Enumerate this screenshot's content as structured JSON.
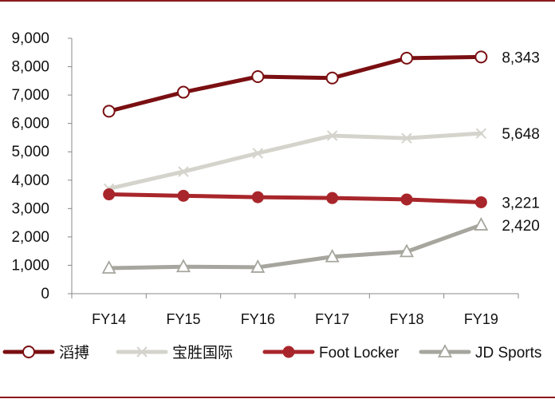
{
  "chart_data": {
    "type": "line",
    "categories": [
      "FY14",
      "FY15",
      "FY16",
      "FY17",
      "FY18",
      "FY19"
    ],
    "ylim": [
      0,
      9000
    ],
    "yticks": [
      "0",
      "1,000",
      "2,000",
      "3,000",
      "4,000",
      "5,000",
      "6,000",
      "7,000",
      "8,000",
      "9,000"
    ],
    "ytick_values": [
      0,
      1000,
      2000,
      3000,
      4000,
      5000,
      6000,
      7000,
      8000,
      9000
    ],
    "grid": false,
    "legend_position": "bottom",
    "series": [
      {
        "name": "滔搏",
        "values": [
          6430,
          7100,
          7650,
          7600,
          8300,
          8343
        ],
        "end_label": "8,343",
        "color": "#7a0f12",
        "marker": "circle"
      },
      {
        "name": "宝胜国际",
        "values": [
          3700,
          4300,
          4950,
          5570,
          5480,
          5648
        ],
        "end_label": "5,648",
        "color": "#d4d4cc",
        "marker": "x"
      },
      {
        "name": "Foot Locker",
        "values": [
          3500,
          3450,
          3400,
          3370,
          3320,
          3221
        ],
        "end_label": "3,221",
        "color": "#a8262b",
        "marker": "filled-circle"
      },
      {
        "name": "JD Sports",
        "values": [
          900,
          950,
          930,
          1300,
          1480,
          2420
        ],
        "end_label": "2,420",
        "color": "#a6a69e",
        "marker": "triangle"
      }
    ]
  }
}
